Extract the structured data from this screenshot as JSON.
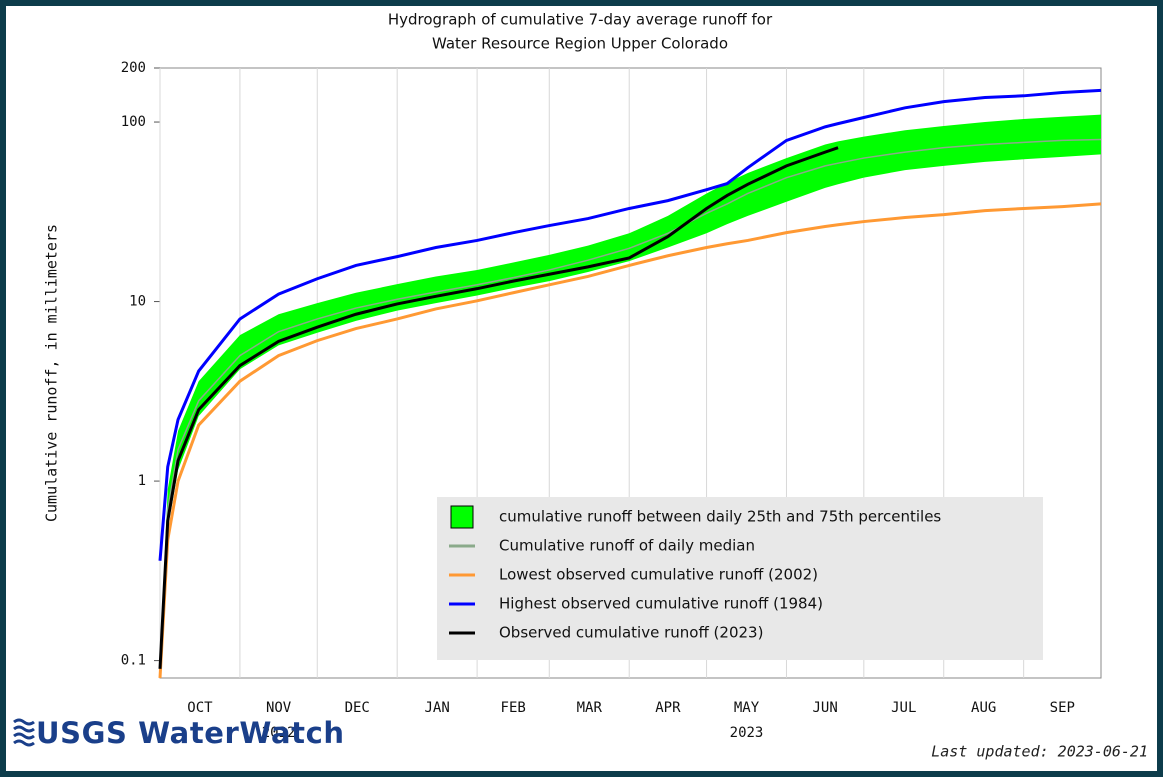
{
  "chart_data": {
    "type": "line",
    "title": "Hydrograph of cumulative 7-day average  runoff for",
    "subtitle": "Water Resource Region Upper Colorado",
    "y_label": "Cumulative runoff, in millimeters",
    "yscale": "log",
    "ylim": [
      0.08,
      200
    ],
    "yticks": [
      0.1,
      1,
      10,
      100,
      200
    ],
    "xlim": [
      0,
      365
    ],
    "xticks": [
      {
        "value": 0,
        "label": "OCT"
      },
      {
        "value": 31,
        "label": "NOV"
      },
      {
        "value": 61,
        "label": "DEC"
      },
      {
        "value": 92,
        "label": "JAN"
      },
      {
        "value": 123,
        "label": "FEB"
      },
      {
        "value": 151,
        "label": "MAR"
      },
      {
        "value": 182,
        "label": "APR"
      },
      {
        "value": 212,
        "label": "MAY"
      },
      {
        "value": 243,
        "label": "JUN"
      },
      {
        "value": 273,
        "label": "JUL"
      },
      {
        "value": 304,
        "label": "AUG"
      },
      {
        "value": 335,
        "label": "SEP"
      }
    ],
    "year_labels": [
      {
        "value": 31,
        "label": "2022"
      },
      {
        "value": 212,
        "label": "2023"
      }
    ],
    "grid": true,
    "legend": "lower-right",
    "x": [
      0,
      3,
      7,
      15,
      31,
      46,
      61,
      76,
      92,
      107,
      123,
      137,
      151,
      166,
      182,
      197,
      212,
      220,
      228,
      243,
      258,
      263,
      273,
      289,
      304,
      320,
      335,
      350,
      365
    ],
    "band": {
      "name": "cumulative runoff between daily 25th and 75th percentiles",
      "color": "#00ff00",
      "lower": [
        0.085,
        0.55,
        1.15,
        2.3,
        4.2,
        5.7,
        6.7,
        7.8,
        8.9,
        9.8,
        10.8,
        11.9,
        13,
        14.6,
        16.8,
        20,
        24,
        27,
        30,
        36,
        43,
        45,
        49,
        54,
        57,
        60,
        62,
        64,
        66
      ],
      "upper": [
        0.1,
        0.9,
        1.9,
        3.6,
        6.5,
        8.5,
        9.8,
        11.2,
        12.5,
        13.8,
        15,
        16.5,
        18.2,
        20.5,
        24,
        30,
        40,
        46,
        52,
        63,
        75,
        78,
        83,
        90,
        95,
        100,
        104,
        107,
        110
      ]
    },
    "series": [
      {
        "name": "Cumulative runoff of daily median",
        "color": "#8aaa8a",
        "values": [
          0.09,
          0.7,
          1.5,
          2.8,
          5,
          6.8,
          8,
          9.2,
          10.3,
          11.3,
          12.4,
          13.6,
          15,
          17,
          19.8,
          24,
          31,
          35,
          40,
          49,
          57,
          59,
          63,
          68,
          72,
          75,
          77,
          79,
          80
        ]
      },
      {
        "name": "Lowest observed cumulative runoff (2002)",
        "color": "#ff9933",
        "values": [
          0.08,
          0.47,
          1,
          2.05,
          3.6,
          5,
          6.06,
          7.07,
          8,
          9.1,
          10.1,
          11.2,
          12.4,
          13.8,
          15.9,
          18,
          20,
          21,
          21.9,
          24.2,
          26.2,
          26.8,
          27.9,
          29.4,
          30.5,
          32.1,
          33,
          33.8,
          35
        ]
      },
      {
        "name": "Highest observed cumulative runoff (1984)",
        "color": "#0000ff",
        "values": [
          0.36,
          1.2,
          2.2,
          4.1,
          8,
          11,
          13.4,
          15.9,
          17.8,
          20,
          21.9,
          24.2,
          26.5,
          29,
          33,
          36.5,
          42,
          45.4,
          55.7,
          79,
          94,
          98,
          106,
          120,
          130,
          137,
          140,
          146,
          150
        ]
      },
      {
        "name": "Observed cumulative runoff (2023)",
        "color": "#000000",
        "values": [
          0.09,
          0.6,
          1.3,
          2.5,
          4.4,
          6,
          7.2,
          8.5,
          9.7,
          10.7,
          11.8,
          13,
          14.2,
          15.6,
          17.5,
          23,
          33,
          39,
          45,
          57,
          68,
          72,
          null,
          null,
          null,
          null,
          null,
          null,
          null
        ]
      }
    ]
  },
  "footer": {
    "logo": "USGS WaterWatch",
    "updated": "Last updated: 2023-06-21"
  }
}
